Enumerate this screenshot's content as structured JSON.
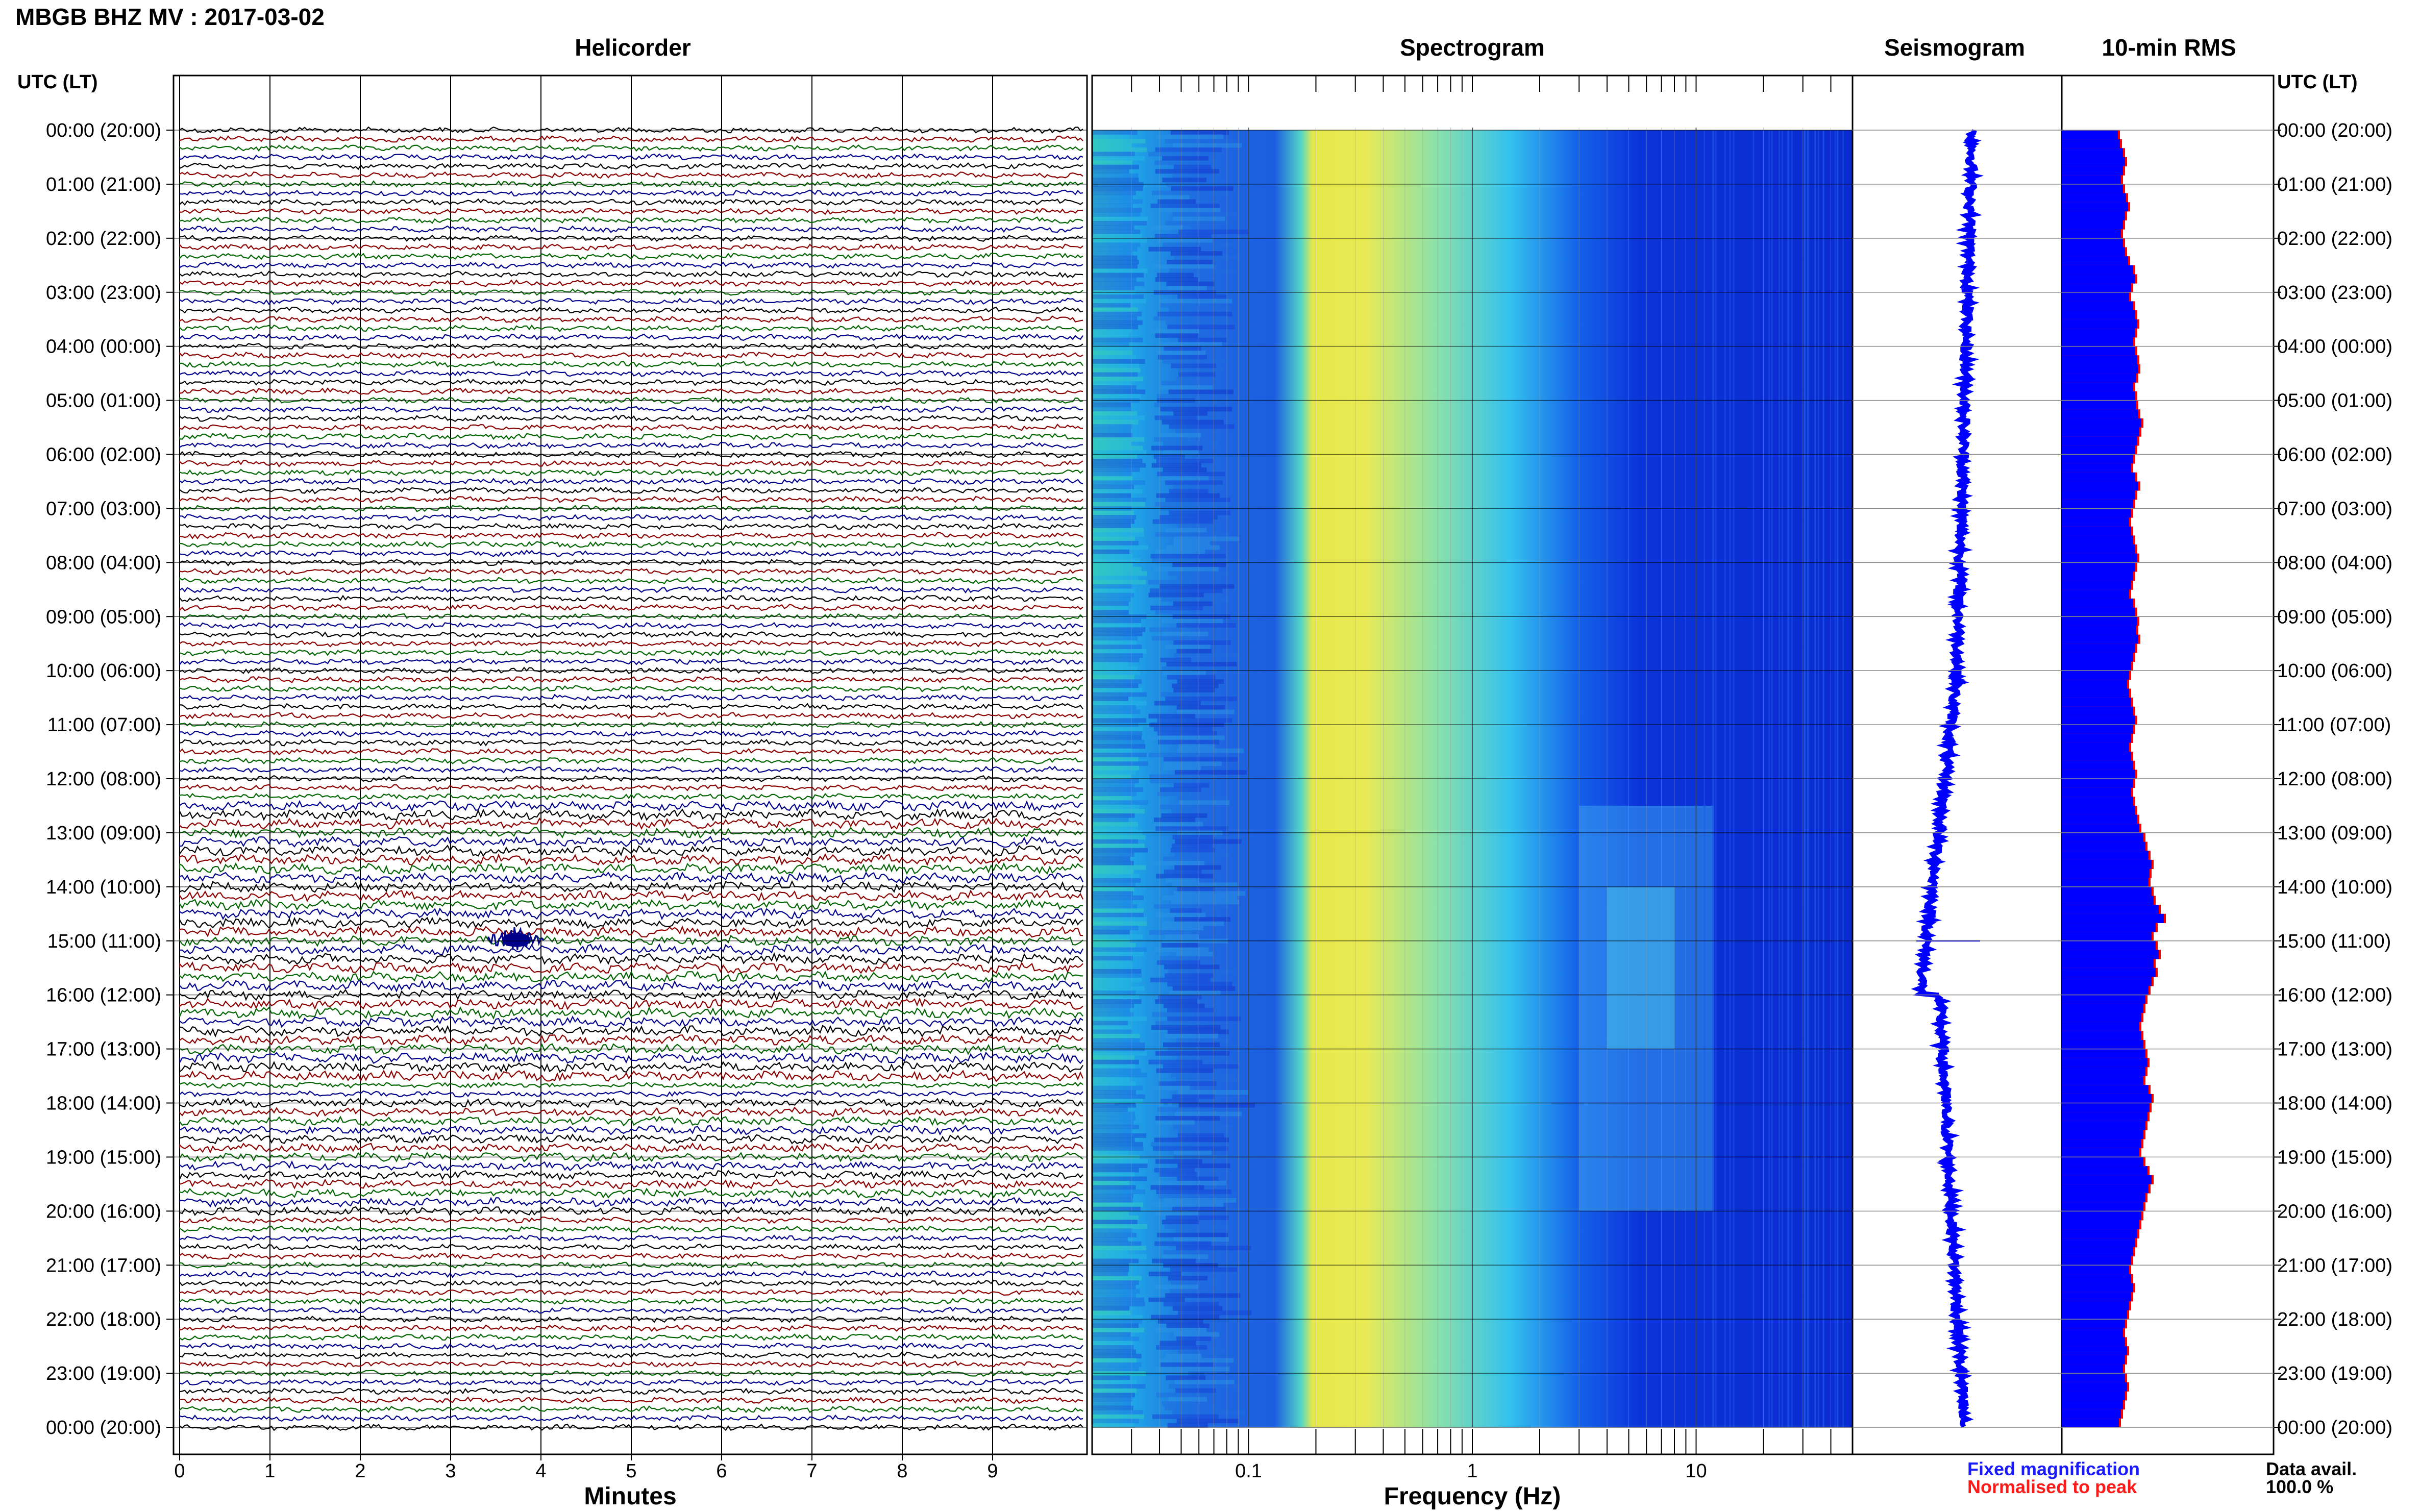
{
  "title": "MBGB BHZ MV : 2017-03-02",
  "panels": {
    "helicorder": "Helicorder",
    "spectrogram": "Spectrogram",
    "seismogram": "Seismogram",
    "rms": "10-min RMS"
  },
  "utc_header_left": "UTC (LT)",
  "utc_header_right": "UTC (LT)",
  "time_labels": [
    "00:00 (20:00)",
    "01:00 (21:00)",
    "02:00 (22:00)",
    "03:00 (23:00)",
    "04:00 (00:00)",
    "05:00 (01:00)",
    "06:00 (02:00)",
    "07:00 (03:00)",
    "08:00 (04:00)",
    "09:00 (05:00)",
    "10:00 (06:00)",
    "11:00 (07:00)",
    "12:00 (08:00)",
    "13:00 (09:00)",
    "14:00 (10:00)",
    "15:00 (11:00)",
    "16:00 (12:00)",
    "17:00 (13:00)",
    "18:00 (14:00)",
    "19:00 (15:00)",
    "20:00 (16:00)",
    "21:00 (17:00)",
    "22:00 (18:00)",
    "23:00 (19:00)",
    "00:00 (20:00)"
  ],
  "x_axes": {
    "minutes_label": "Minutes",
    "minutes_ticks": [
      "0",
      "1",
      "2",
      "3",
      "4",
      "5",
      "6",
      "7",
      "8",
      "9"
    ],
    "frequency_label": "Frequency (Hz)",
    "frequency_ticks": [
      "0.1",
      "1",
      "10"
    ]
  },
  "legend": {
    "fixed": "Fixed magnification",
    "fixed_color": "#1a1aff",
    "normalised": "Normalised to peak",
    "normalised_color": "#ff1a1a"
  },
  "data_availability": {
    "label": "Data avail.",
    "value": "100.0 %"
  },
  "colors": {
    "trace_cycle": [
      "#000000",
      "#8b0000",
      "#006400",
      "#00008b"
    ],
    "rms_fixed": "#0000ff",
    "rms_peak": "#ff0000"
  },
  "chart_data": {
    "type": "heatmap",
    "helicorder": {
      "x_range_minutes": [
        0,
        10
      ],
      "traces_per_hour": 6,
      "hours": 24,
      "event": {
        "time_utc": "15:00",
        "minute": 3.7
      }
    },
    "spectrogram": {
      "x_scale": "log",
      "frequency_range_hz": [
        0.02,
        50
      ],
      "band_energy_peak_hz": [
        0.2,
        1.0
      ],
      "afternoon_high_freq_activity_utc": [
        "12:30",
        "20:00"
      ]
    },
    "rms_10min": {
      "relative_values": [
        0.55,
        0.57,
        0.6,
        0.62,
        0.6,
        0.58,
        0.6,
        0.63,
        0.65,
        0.62,
        0.6,
        0.58,
        0.6,
        0.62,
        0.65,
        0.7,
        0.72,
        0.68,
        0.66,
        0.7,
        0.72,
        0.74,
        0.72,
        0.7,
        0.72,
        0.74,
        0.75,
        0.73,
        0.7,
        0.72,
        0.73,
        0.75,
        0.78,
        0.76,
        0.74,
        0.72,
        0.7,
        0.68,
        0.72,
        0.75,
        0.72,
        0.7,
        0.68,
        0.66,
        0.68,
        0.7,
        0.72,
        0.74,
        0.72,
        0.7,
        0.68,
        0.66,
        0.7,
        0.72,
        0.74,
        0.73,
        0.75,
        0.72,
        0.7,
        0.68,
        0.66,
        0.64,
        0.66,
        0.68,
        0.7,
        0.72,
        0.7,
        0.68,
        0.66,
        0.68,
        0.7,
        0.72,
        0.7,
        0.68,
        0.7,
        0.72,
        0.74,
        0.76,
        0.8,
        0.82,
        0.85,
        0.88,
        0.86,
        0.85,
        0.88,
        0.9,
        0.95,
        1.0,
        0.92,
        0.88,
        0.92,
        0.95,
        0.9,
        0.92,
        0.88,
        0.85,
        0.82,
        0.8,
        0.78,
        0.76,
        0.78,
        0.8,
        0.82,
        0.84,
        0.82,
        0.8,
        0.85,
        0.88,
        0.86,
        0.84,
        0.82,
        0.8,
        0.78,
        0.76,
        0.8,
        0.84,
        0.88,
        0.85,
        0.82,
        0.8,
        0.78,
        0.76,
        0.74,
        0.72,
        0.7,
        0.68,
        0.66,
        0.68,
        0.7,
        0.68,
        0.66,
        0.64,
        0.62,
        0.6,
        0.62,
        0.64,
        0.62,
        0.6,
        0.62,
        0.64,
        0.62,
        0.6,
        0.58,
        0.56
      ]
    }
  }
}
